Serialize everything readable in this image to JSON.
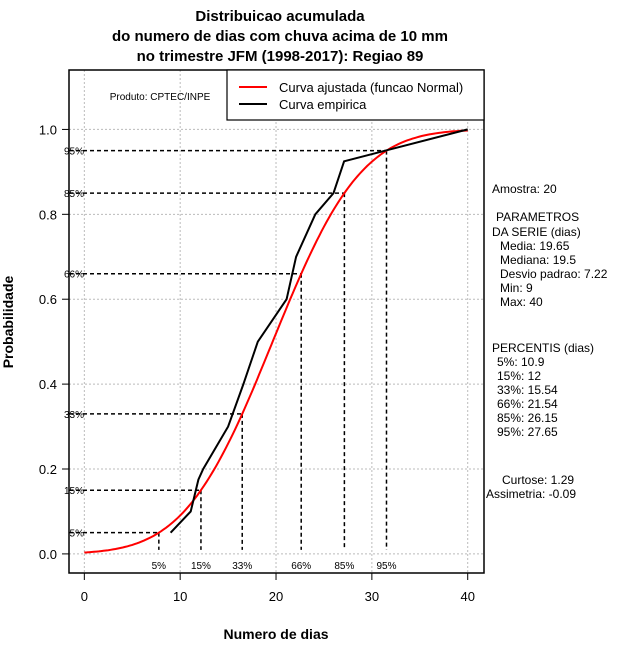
{
  "chart_data": {
    "type": "line",
    "title": [
      "Distribuicao acumulada",
      "do numero de dias com chuva acima de 10 mm",
      "no trimestre JFM (1998-2017): Regiao 89"
    ],
    "xlabel": "Numero de dias",
    "ylabel": "Probabilidade",
    "xlim": [
      -1.6,
      41.7
    ],
    "ylim": [
      -0.045,
      1.14
    ],
    "xticks": [
      0,
      10,
      20,
      30,
      40
    ],
    "yticks": [
      "0.0",
      "0.2",
      "0.4",
      "0.6",
      "0.8",
      "1.0"
    ],
    "grid": true,
    "credit": "Produto: CPTEC/INPE",
    "legend": {
      "placement": "top-right",
      "entries": [
        {
          "label": "Curva ajustada (funcao Normal)",
          "color": "#ff0000"
        },
        {
          "label": "Curva empirica",
          "color": "#000000"
        }
      ]
    },
    "series": [
      {
        "name": "Curva ajustada (funcao Normal)",
        "color": "#ff0000",
        "mean": 19.65,
        "sd": 7.22,
        "x_range": [
          0,
          40
        ]
      },
      {
        "name": "Curva empirica",
        "color": "#000000",
        "x": [
          9,
          11.1,
          11.9,
          12.4,
          15,
          16.6,
          18.1,
          21.1,
          22.1,
          24.1,
          26,
          27.1,
          40
        ],
        "y": [
          0.05,
          0.1,
          0.175,
          0.2,
          0.3,
          0.4,
          0.5,
          0.6,
          0.7,
          0.8,
          0.85,
          0.925,
          1.0
        ]
      }
    ],
    "percentile_markers": [
      {
        "label": "5%",
        "p": 0.05
      },
      {
        "label": "15%",
        "p": 0.15
      },
      {
        "label": "33%",
        "p": 0.33
      },
      {
        "label": "66%",
        "p": 0.66
      },
      {
        "label": "85%",
        "p": 0.85
      },
      {
        "label": "95%",
        "p": 0.95
      }
    ]
  },
  "side_panel": {
    "sample": "Amostra: 20",
    "params_heading": [
      "PARAMETROS",
      "DA SERIE (dias)"
    ],
    "params": [
      "Media: 19.65",
      "Mediana: 19.5",
      "Desvio padrao: 7.22",
      "Min: 9",
      "Max: 40"
    ],
    "percentis_heading": "PERCENTIS (dias)",
    "percentis": [
      "5%: 10.9",
      "15%: 12",
      "33%: 15.54",
      "66%: 21.54",
      "85%: 26.15",
      "95%: 27.65"
    ],
    "curtose": "Curtose: 1.29",
    "assimetria": "Assimetria: -0.09"
  }
}
